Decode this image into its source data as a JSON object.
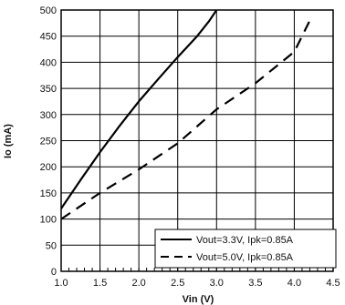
{
  "chart_data": {
    "type": "line",
    "xlabel": "Vin (V)",
    "ylabel": "Io (mA)",
    "xlim": [
      1.0,
      4.5
    ],
    "ylim": [
      0,
      500
    ],
    "x_ticks": [
      "1.0",
      "1.5",
      "2.0",
      "2.5",
      "3.0",
      "3.5",
      "4.0",
      "4.5"
    ],
    "y_ticks": [
      "0",
      "50",
      "100",
      "150",
      "200",
      "250",
      "300",
      "350",
      "400",
      "450",
      "500"
    ],
    "grid": true,
    "legend_position": "bottom-right",
    "series": [
      {
        "name": "Vout=3.3V, Ipk=0.85A",
        "style": "solid",
        "color": "#000000",
        "points": [
          [
            1.0,
            120
          ],
          [
            1.25,
            175
          ],
          [
            1.5,
            228
          ],
          [
            1.75,
            278
          ],
          [
            2.0,
            325
          ],
          [
            2.25,
            368
          ],
          [
            2.5,
            410
          ],
          [
            2.75,
            450
          ],
          [
            2.9,
            478
          ],
          [
            3.0,
            500
          ]
        ]
      },
      {
        "name": "Vout=5.0V, Ipk=0.85A",
        "style": "dashed",
        "color": "#000000",
        "points": [
          [
            1.0,
            100
          ],
          [
            1.5,
            150
          ],
          [
            2.0,
            195
          ],
          [
            2.5,
            245
          ],
          [
            3.0,
            310
          ],
          [
            3.5,
            360
          ],
          [
            4.0,
            420
          ],
          [
            4.2,
            480
          ]
        ]
      }
    ]
  }
}
